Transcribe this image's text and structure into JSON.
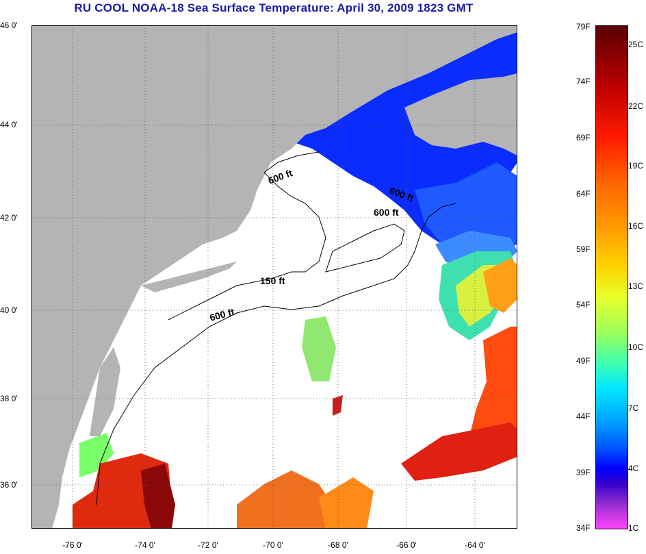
{
  "title": "RU COOL  NOAA-18  Sea Surface Temperature:  April 30, 2009 1823 GMT",
  "map": {
    "lon_range": [
      -77,
      -62.5
    ],
    "lat_range": [
      35,
      46
    ],
    "lat_ticks": [
      "46 0'",
      "44 0'",
      "42 0'",
      "40 0'",
      "38 0'",
      "36 0'"
    ],
    "lon_ticks": [
      "-76 0'",
      "-74 0'",
      "-72 0'",
      "-70 0'",
      "-68 0'",
      "-66 0'",
      "-64 0'"
    ],
    "contour_labels": [
      "600 ft",
      "600 ft",
      "600 ft",
      "150 ft",
      "600 ft"
    ],
    "land_color": "#b4b4b4",
    "no_data_color": "#ffffff"
  },
  "colorbar": {
    "fahrenheit": [
      "79F",
      "74F",
      "69F",
      "64F",
      "59F",
      "54F",
      "49F",
      "44F",
      "39F",
      "34F"
    ],
    "celsius": [
      "25C",
      "22C",
      "19C",
      "16C",
      "13C",
      "10C",
      "7C",
      "4C",
      "1C"
    ]
  }
}
